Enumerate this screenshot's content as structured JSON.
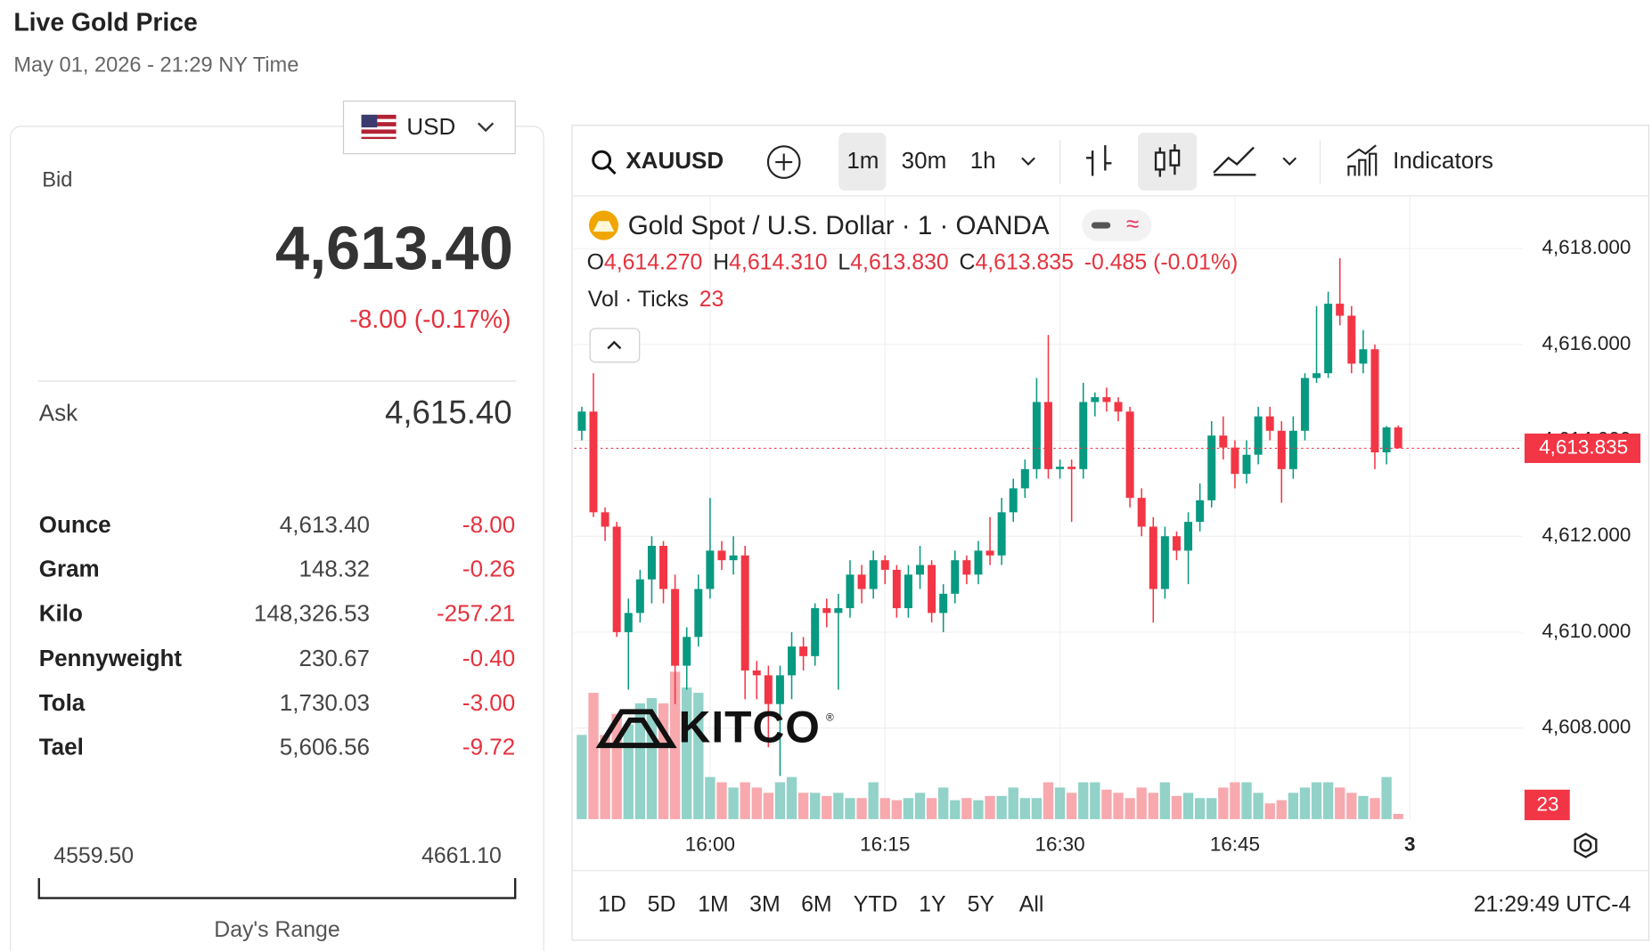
{
  "header": {
    "title": "Live Gold Price",
    "datetime": "May 01, 2026 - 21:29 NY Time"
  },
  "currency": "USD",
  "bid": {
    "label": "Bid",
    "value": "4,613.40",
    "change": "-8.00 (-0.17%)"
  },
  "ask": {
    "label": "Ask",
    "value": "4,615.40"
  },
  "units": [
    {
      "name": "Ounce",
      "price": "4,613.40",
      "change": "-8.00"
    },
    {
      "name": "Gram",
      "price": "148.32",
      "change": "-0.26"
    },
    {
      "name": "Kilo",
      "price": "148,326.53",
      "change": "-257.21"
    },
    {
      "name": "Pennyweight",
      "price": "230.67",
      "change": "-0.40"
    },
    {
      "name": "Tola",
      "price": "1,730.03",
      "change": "-3.00"
    },
    {
      "name": "Tael",
      "price": "5,606.56",
      "change": "-9.72"
    }
  ],
  "range": {
    "low": "4559.50",
    "high": "4661.10",
    "label": "Day's Range"
  },
  "toolbar": {
    "symbol": "XAUUSD",
    "intervals": [
      "1m",
      "30m",
      "1h"
    ],
    "indicators": "Indicators"
  },
  "legend": {
    "title": "Gold Spot / U.S. Dollar · 1 · OANDA",
    "ohlc": [
      {
        "k": "O",
        "v": "4,614.270"
      },
      {
        "k": "H",
        "v": "4,614.310"
      },
      {
        "k": "L",
        "v": "4,613.830"
      },
      {
        "k": "C",
        "v": "4,613.835"
      }
    ],
    "change": "-0.485 (-0.01%)",
    "vol": "Vol · Ticks",
    "vol_value": "23"
  },
  "logo": {
    "text": "KITCO",
    "mark": "®"
  },
  "chart_data": {
    "type": "candlestick",
    "x": [
      49,
      50,
      51,
      52,
      53,
      54,
      55,
      56,
      57,
      58,
      59,
      60,
      61,
      62,
      63,
      64,
      65,
      66,
      67,
      68,
      69,
      70,
      71,
      72,
      73,
      74,
      75,
      76,
      77,
      78,
      79,
      80,
      81,
      82,
      83,
      84,
      85,
      86,
      87,
      88,
      89,
      90,
      91,
      92,
      93,
      94,
      95,
      96,
      97,
      98,
      99,
      100,
      101,
      102,
      103,
      104,
      105,
      106,
      107,
      108,
      109,
      110,
      111,
      112,
      113,
      114,
      115,
      116,
      117,
      118,
      119
    ],
    "ohlc": [
      [
        4614.2,
        4614.7,
        4614.0,
        4614.6
      ],
      [
        4614.6,
        4615.4,
        4612.4,
        4612.5
      ],
      [
        4612.5,
        4612.6,
        4611.9,
        4612.2
      ],
      [
        4612.2,
        4612.3,
        4609.9,
        4610.0
      ],
      [
        4610.0,
        4610.7,
        4608.8,
        4610.4
      ],
      [
        4610.4,
        4611.3,
        4610.2,
        4611.1
      ],
      [
        4611.1,
        4612.0,
        4610.6,
        4611.8
      ],
      [
        4611.8,
        4611.9,
        4610.6,
        4610.9
      ],
      [
        4610.9,
        4611.2,
        4608.5,
        4609.3
      ],
      [
        4609.3,
        4610.1,
        4608.8,
        4609.9
      ],
      [
        4609.9,
        4611.2,
        4609.7,
        4610.9
      ],
      [
        4610.9,
        4612.8,
        4610.7,
        4611.7
      ],
      [
        4611.7,
        4611.9,
        4611.3,
        4611.5
      ],
      [
        4611.5,
        4612.0,
        4611.2,
        4611.6
      ],
      [
        4611.6,
        4611.8,
        4608.6,
        4609.2
      ],
      [
        4609.2,
        4609.4,
        4608.6,
        4609.1
      ],
      [
        4609.1,
        4609.3,
        4607.6,
        4608.5
      ],
      [
        4608.5,
        4609.3,
        4607.0,
        4609.1
      ],
      [
        4609.1,
        4610.0,
        4608.6,
        4609.7
      ],
      [
        4609.7,
        4609.9,
        4609.2,
        4609.5
      ],
      [
        4609.5,
        4610.6,
        4609.3,
        4610.5
      ],
      [
        4610.5,
        4610.7,
        4610.1,
        4610.4
      ],
      [
        4610.4,
        4610.8,
        4608.8,
        4610.5
      ],
      [
        4610.5,
        4611.5,
        4610.3,
        4611.2
      ],
      [
        4611.2,
        4611.4,
        4610.6,
        4610.9
      ],
      [
        4610.9,
        4611.7,
        4610.7,
        4611.5
      ],
      [
        4611.5,
        4611.6,
        4611.0,
        4611.3
      ],
      [
        4611.3,
        4611.4,
        4610.3,
        4610.5
      ],
      [
        4610.5,
        4611.4,
        4610.3,
        4611.2
      ],
      [
        4611.2,
        4611.8,
        4610.9,
        4611.4
      ],
      [
        4611.4,
        4611.5,
        4610.2,
        4610.4
      ],
      [
        4610.4,
        4611.0,
        4610.0,
        4610.8
      ],
      [
        4610.8,
        4611.7,
        4610.6,
        4611.5
      ],
      [
        4611.5,
        4611.6,
        4611.0,
        4611.2
      ],
      [
        4611.2,
        4611.9,
        4611.0,
        4611.7
      ],
      [
        4611.7,
        4612.4,
        4611.4,
        4611.6
      ],
      [
        4611.6,
        4612.8,
        4611.4,
        4612.5
      ],
      [
        4612.5,
        4613.2,
        4612.3,
        4613.0
      ],
      [
        4613.0,
        4613.6,
        4612.8,
        4613.4
      ],
      [
        4613.4,
        4615.3,
        4613.2,
        4614.8
      ],
      [
        4614.8,
        4616.2,
        4613.2,
        4613.4
      ],
      [
        4613.4,
        4613.6,
        4613.2,
        4613.45
      ],
      [
        4613.45,
        4613.6,
        4612.3,
        4613.4
      ],
      [
        4613.4,
        4615.2,
        4613.2,
        4614.8
      ],
      [
        4614.8,
        4615.0,
        4614.5,
        4614.9
      ],
      [
        4614.9,
        4615.1,
        4614.6,
        4614.8
      ],
      [
        4614.8,
        4614.9,
        4614.4,
        4614.6
      ],
      [
        4614.6,
        4614.7,
        4612.6,
        4612.8
      ],
      [
        4612.8,
        4613.0,
        4612.0,
        4612.2
      ],
      [
        4612.2,
        4612.4,
        4610.2,
        4610.9
      ],
      [
        4610.9,
        4612.2,
        4610.7,
        4612.0
      ],
      [
        4612.0,
        4612.1,
        4611.5,
        4611.7
      ],
      [
        4611.7,
        4612.5,
        4611.0,
        4612.3
      ],
      [
        4612.3,
        4613.1,
        4612.1,
        4612.75
      ],
      [
        4612.75,
        4614.4,
        4612.6,
        4614.1
      ],
      [
        4614.1,
        4614.5,
        4613.6,
        4613.85
      ],
      [
        4613.85,
        4614.0,
        4613.0,
        4613.3
      ],
      [
        4613.3,
        4614.0,
        4613.1,
        4613.7
      ],
      [
        4613.7,
        4614.7,
        4613.5,
        4614.5
      ],
      [
        4614.5,
        4614.7,
        4614.0,
        4614.2
      ],
      [
        4614.2,
        4614.4,
        4612.7,
        4613.4
      ],
      [
        4613.4,
        4614.5,
        4613.2,
        4614.2
      ],
      [
        4614.2,
        4615.4,
        4614.0,
        4615.3
      ],
      [
        4615.3,
        4616.8,
        4615.2,
        4615.4
      ],
      [
        4615.4,
        4617.1,
        4615.3,
        4616.85
      ],
      [
        4616.85,
        4617.8,
        4616.4,
        4616.6
      ],
      [
        4616.6,
        4616.8,
        4615.4,
        4615.6
      ],
      [
        4615.6,
        4616.3,
        4615.4,
        4615.9
      ],
      [
        4615.9,
        4616.0,
        4613.4,
        4613.75
      ],
      [
        4613.75,
        4614.3,
        4613.5,
        4614.27
      ],
      [
        4614.27,
        4614.31,
        4613.83,
        4613.835
      ]
    ],
    "volume": [
      80,
      120,
      80,
      100,
      90,
      110,
      115,
      110,
      140,
      125,
      120,
      40,
      35,
      30,
      35,
      30,
      25,
      35,
      40,
      25,
      25,
      22,
      25,
      20,
      20,
      35,
      20,
      18,
      20,
      25,
      20,
      30,
      18,
      20,
      18,
      22,
      22,
      30,
      20,
      20,
      35,
      30,
      25,
      35,
      35,
      28,
      25,
      20,
      30,
      25,
      35,
      22,
      25,
      20,
      20,
      30,
      35,
      35,
      25,
      15,
      18,
      25,
      30,
      35,
      35,
      30,
      25,
      22,
      20,
      40,
      5
    ],
    "xlim": [
      48.35,
      129.65
    ],
    "xticks": [
      {
        "value": 60,
        "label": "16:00"
      },
      {
        "value": 75,
        "label": "16:15"
      },
      {
        "value": 90,
        "label": "16:30"
      },
      {
        "value": 105,
        "label": "16:45"
      },
      {
        "value": 120,
        "label": "3"
      }
    ],
    "ylim": [
      4606.1,
      4619.1
    ],
    "yticks": [
      {
        "value": 4608,
        "label": "4,608.000"
      },
      {
        "value": 4610,
        "label": "4,610.000"
      },
      {
        "value": 4612,
        "label": "4,612.000"
      },
      {
        "value": 4614,
        "label": "4,614.000"
      },
      {
        "value": 4616,
        "label": "4,616.000"
      },
      {
        "value": 4618,
        "label": "4,618.000"
      }
    ],
    "vlim": [
      0,
      130
    ],
    "last_label": "4,613.835",
    "up_color": "#089981",
    "down_color": "#f23645",
    "vol_up_color": "#92d2c8",
    "vol_down_color": "#f7a9ae",
    "grid": true
  },
  "ranges": [
    "1D",
    "5D",
    "1M",
    "3M",
    "6M",
    "YTD",
    "1Y",
    "5Y",
    "All"
  ],
  "clock": "21:29:49 UTC-4"
}
